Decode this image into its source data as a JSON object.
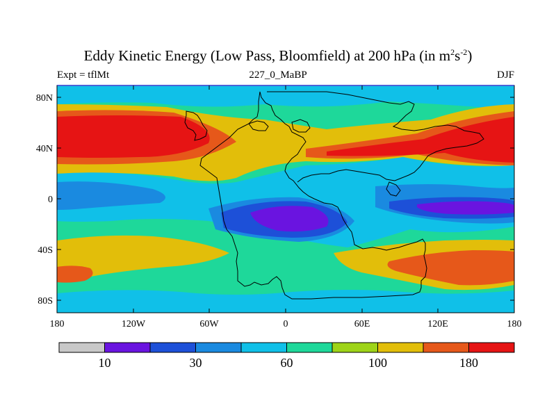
{
  "title": {
    "prefix": "Eddy Kinetic Energy (Low Pass, Bloomfield) at 200 hPa (in m",
    "sup1": "2",
    "mid": "s",
    "sup2": "-2",
    "suffix": ")"
  },
  "subtitle": {
    "left": "Expt = tflMt",
    "center": "227_0_MaBP",
    "right": "DJF"
  },
  "map": {
    "x_ticks": [
      "180",
      "120W",
      "60W",
      "0",
      "60E",
      "120E",
      "180"
    ],
    "y_ticks": [
      "80N",
      "40N",
      "0",
      "40S",
      "80S"
    ],
    "colors": {
      "c0": "#c8c8c8",
      "c1": "#6a14e0",
      "c2": "#1d50d8",
      "c3": "#1a8ae0",
      "c4": "#10c0e8",
      "c5": "#1ed89a",
      "c6": "#9ed418",
      "c7": "#e2be0a",
      "c8": "#e6581a",
      "c9": "#e61414"
    }
  },
  "colorbar": {
    "labels": [
      "10",
      "30",
      "60",
      "100",
      "180"
    ],
    "colors": [
      "#c8c8c8",
      "#6a14e0",
      "#1d50d8",
      "#1a8ae0",
      "#10c0e8",
      "#1ed89a",
      "#9ed418",
      "#e2be0a",
      "#e6581a",
      "#e61414"
    ]
  }
}
